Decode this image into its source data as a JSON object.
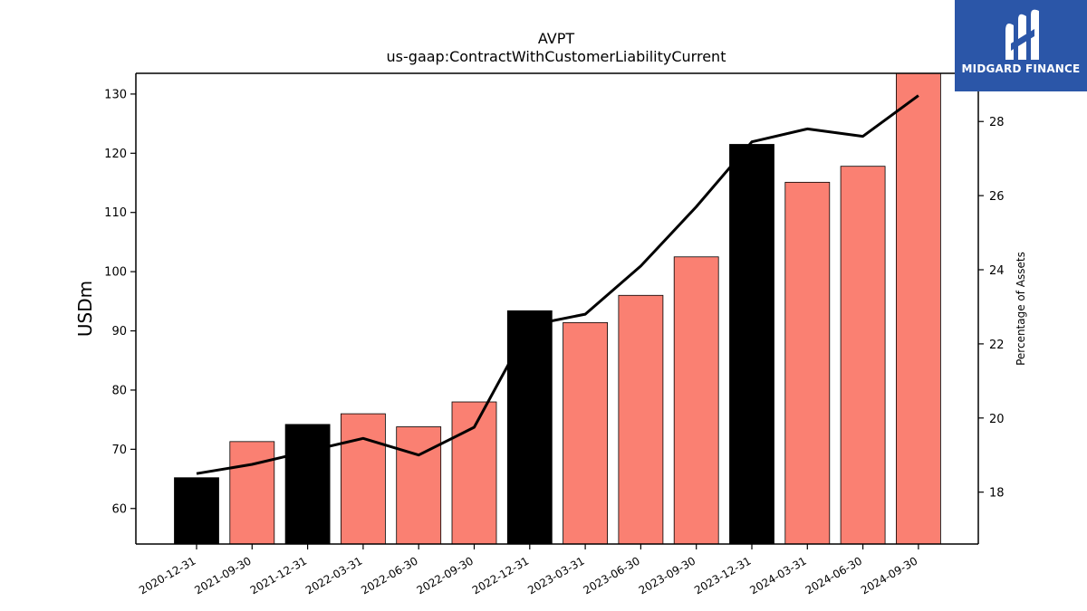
{
  "chart_data": {
    "type": "bar",
    "title": "AVPT",
    "subtitle": "us-gaap:ContractWithCustomerLiabilityCurrent",
    "ylabel": "USDm",
    "ylabel_right": "Percentage of Assets",
    "ylim": [
      54,
      133.5
    ],
    "ylim_right": [
      16.6,
      29.3
    ],
    "yticks": [
      60,
      70,
      80,
      90,
      100,
      110,
      120,
      130
    ],
    "yticks_right": [
      18,
      20,
      22,
      24,
      26,
      28
    ],
    "grid": false,
    "categories": [
      "2020-12-31",
      "2021-09-30",
      "2021-12-31",
      "2022-03-31",
      "2022-06-30",
      "2022-09-30",
      "2022-12-31",
      "2023-03-31",
      "2023-06-30",
      "2023-09-30",
      "2023-12-31",
      "2024-03-31",
      "2024-06-30",
      "2024-09-30"
    ],
    "series": [
      {
        "type": "bar",
        "axis": "left",
        "values": [
          65.2,
          71.3,
          74.2,
          76.0,
          73.8,
          78.0,
          93.4,
          91.4,
          96.0,
          102.5,
          121.5,
          115.1,
          117.8,
          135.0
        ],
        "colors": [
          "#000000",
          "#fa8072",
          "#000000",
          "#fa8072",
          "#fa8072",
          "#fa8072",
          "#000000",
          "#fa8072",
          "#fa8072",
          "#fa8072",
          "#000000",
          "#fa8072",
          "#fa8072",
          "#fa8072"
        ]
      },
      {
        "type": "line",
        "axis": "right",
        "color": "#000000",
        "values": [
          18.5,
          18.75,
          19.1,
          19.45,
          19.0,
          19.75,
          22.5,
          22.8,
          24.1,
          25.7,
          27.45,
          27.8,
          27.6,
          28.7
        ]
      }
    ]
  },
  "logo": {
    "text": "MIDGARD FINANCE",
    "background": "#2b56a8"
  }
}
